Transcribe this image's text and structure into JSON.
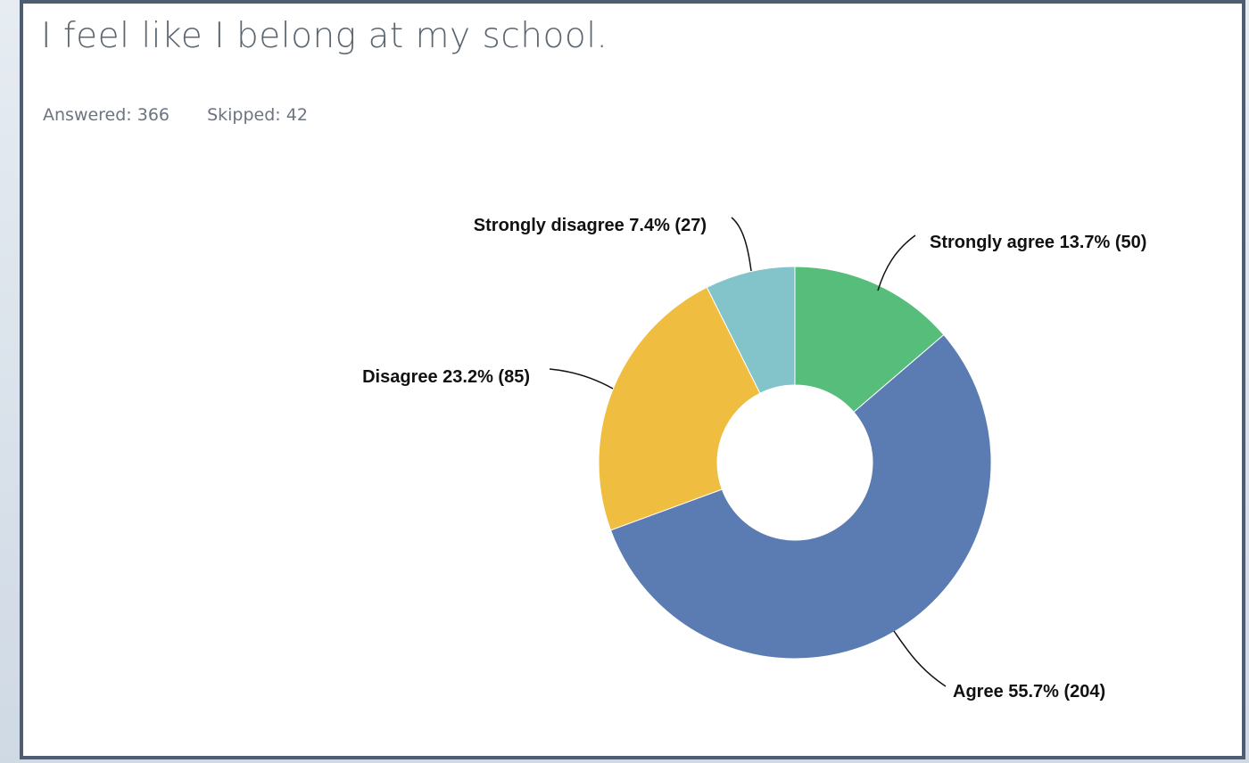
{
  "question": {
    "title": "I feel like I belong at my school.",
    "answered": "Answered: 366",
    "skipped": "Skipped: 42"
  },
  "chart_data": {
    "type": "pie",
    "donut": true,
    "title": "I feel like I belong at my school.",
    "slices": [
      {
        "label": "Strongly agree",
        "percent": 13.7,
        "count": 50,
        "color": "#57bd7a",
        "text": "Strongly agree 13.7% (50)"
      },
      {
        "label": "Agree",
        "percent": 55.7,
        "count": 204,
        "color": "#5b7cb2",
        "text": "Agree 55.7% (204)"
      },
      {
        "label": "Disagree",
        "percent": 23.2,
        "count": 85,
        "color": "#efbd40",
        "text": "Disagree 23.2% (85)"
      },
      {
        "label": "Strongly disagree",
        "percent": 7.4,
        "count": 27,
        "color": "#82c4c9",
        "text": "Strongly disagree 7.4% (27)"
      }
    ]
  }
}
